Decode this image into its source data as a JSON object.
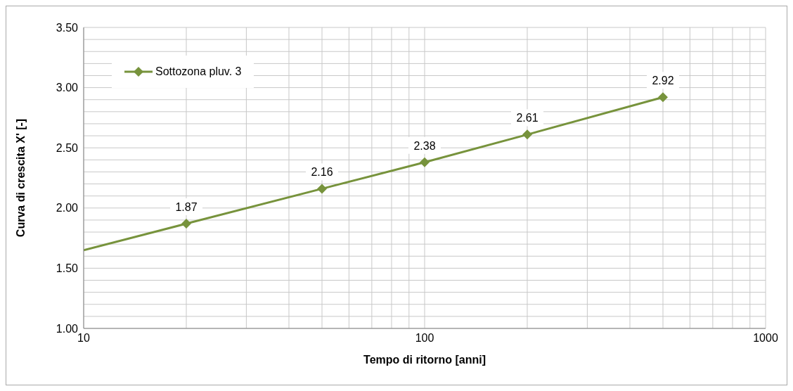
{
  "chart_data": {
    "type": "line",
    "xlabel": "Tempo di ritorno [anni]",
    "ylabel": "Curva di crescita X' [-]",
    "log": "x",
    "xlim": [
      10,
      1000
    ],
    "xticks": [
      10,
      {
        "value": 20,
        "label": null
      },
      {
        "value": 30,
        "label": null
      },
      {
        "value": 40,
        "label": null
      },
      {
        "value": 50,
        "label": null
      },
      {
        "value": 60,
        "label": null
      },
      {
        "value": 70,
        "label": null
      },
      {
        "value": 80,
        "label": null
      },
      {
        "value": 90,
        "label": null
      },
      100,
      {
        "value": 200,
        "label": null
      },
      {
        "value": 300,
        "label": null
      },
      {
        "value": 400,
        "label": null
      },
      {
        "value": 500,
        "label": null
      },
      {
        "value": 600,
        "label": null
      },
      {
        "value": 700,
        "label": null
      },
      {
        "value": 800,
        "label": null
      },
      {
        "value": 900,
        "label": null
      },
      1000
    ],
    "ylim": [
      1,
      3.5
    ],
    "yticks": [
      {
        "value": 1,
        "label": "1.00"
      },
      {
        "value": 1.1,
        "label": null
      },
      {
        "value": 1.2,
        "label": null
      },
      {
        "value": 1.3,
        "label": null
      },
      {
        "value": 1.4,
        "label": null
      },
      {
        "value": 1.5,
        "label": "1.50"
      },
      {
        "value": 1.6,
        "label": null
      },
      {
        "value": 1.7,
        "label": null
      },
      {
        "value": 1.8,
        "label": null
      },
      {
        "value": 1.9,
        "label": null
      },
      {
        "value": 2,
        "label": "2.00"
      },
      {
        "value": 2.1,
        "label": null
      },
      {
        "value": 2.2,
        "label": null
      },
      {
        "value": 2.3,
        "label": null
      },
      {
        "value": 2.4,
        "label": null
      },
      {
        "value": 2.5,
        "label": "2.50"
      },
      {
        "value": 2.6,
        "label": null
      },
      {
        "value": 2.7,
        "label": null
      },
      {
        "value": 2.8,
        "label": null
      },
      {
        "value": 2.9,
        "label": null
      },
      {
        "value": 3,
        "label": "3.00"
      },
      {
        "value": 3.1,
        "label": null
      },
      {
        "value": 3.2,
        "label": null
      },
      {
        "value": 3.3,
        "label": null
      },
      {
        "value": 3.4,
        "label": null
      },
      {
        "value": 3.5,
        "label": "3.50"
      }
    ],
    "grid": true,
    "legend": "top left",
    "line_style": "solid",
    "series": [
      {
        "name": "Sottozona pluv. 3",
        "color": "#77933c",
        "x": [
          20,
          50,
          100,
          200,
          500
        ],
        "values": [
          1.87,
          2.16,
          2.38,
          2.61,
          2.92
        ],
        "marker": "diamond",
        "data_labels": true
      },
      {
        "color": "#77933c",
        "x": [
          10,
          20
        ],
        "values": [
          1.65,
          1.87
        ],
        "marker": "none"
      }
    ]
  }
}
